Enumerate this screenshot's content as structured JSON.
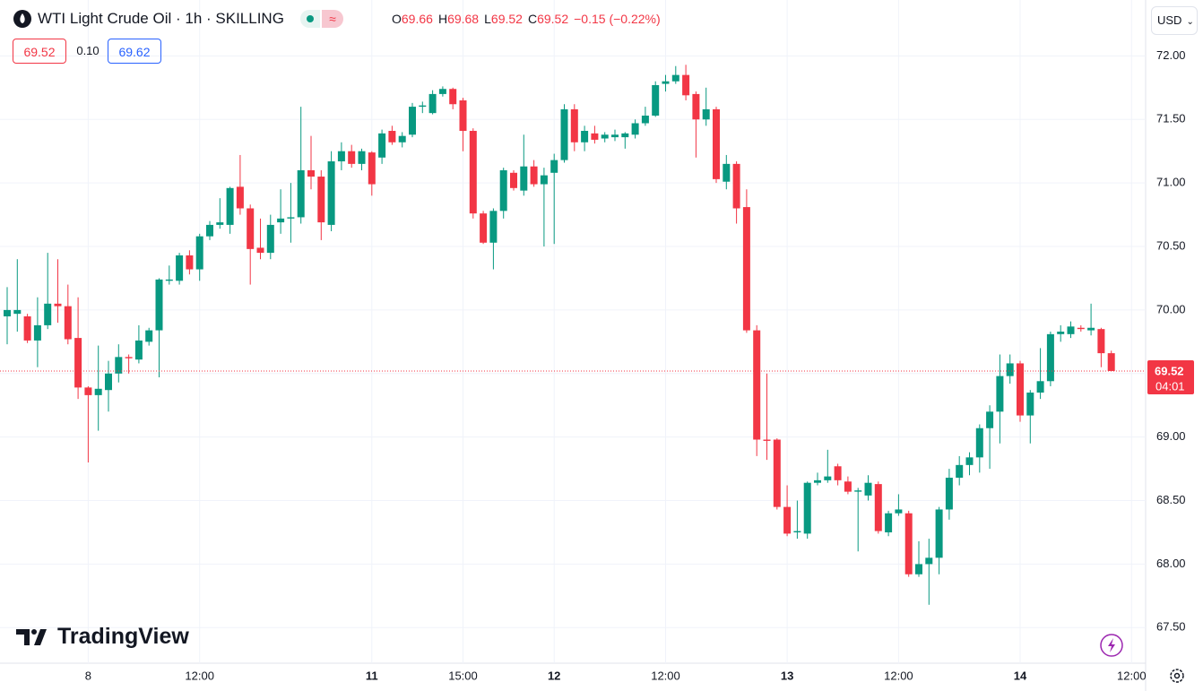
{
  "header": {
    "title": "WTI Light Crude Oil · 1h · SKILLING",
    "ohlc": [
      {
        "label": "O",
        "value": "69.66"
      },
      {
        "label": "H",
        "value": "69.68"
      },
      {
        "label": "L",
        "value": "69.52"
      },
      {
        "label": "C",
        "value": "69.52"
      }
    ],
    "change": "−0.15 (−0.22%)"
  },
  "trade": {
    "sell": "69.52",
    "spread": "0.10",
    "buy": "69.62"
  },
  "currency": "USD",
  "logo": "TradingView",
  "chart_data": {
    "type": "candlestick",
    "up_color": "#089981",
    "down_color": "#f23645",
    "grid": true,
    "ylim": [
      67.22,
      72.44
    ],
    "yticks": [
      {
        "value": 72,
        "label": "72.00"
      },
      {
        "value": 71.5,
        "label": "71.50"
      },
      {
        "value": 71,
        "label": "71.00"
      },
      {
        "value": 70.5,
        "label": "70.50"
      },
      {
        "value": 70,
        "label": "70.00"
      },
      {
        "value": 69.5,
        "label": "69.50"
      },
      {
        "value": 69,
        "label": "69.00"
      },
      {
        "value": 68.5,
        "label": "68.50"
      },
      {
        "value": 68,
        "label": "68.00"
      },
      {
        "value": 67.5,
        "label": "67.50"
      }
    ],
    "last_price": 69.52,
    "countdown": "04:01",
    "categories": [
      null,
      null,
      null,
      null,
      null,
      null,
      null,
      null,
      "8",
      null,
      null,
      null,
      null,
      null,
      null,
      null,
      null,
      null,
      null,
      "12:00",
      null,
      null,
      null,
      null,
      null,
      null,
      null,
      null,
      null,
      null,
      null,
      null,
      null,
      null,
      null,
      null,
      "11",
      null,
      null,
      null,
      null,
      null,
      null,
      null,
      null,
      "15:00",
      null,
      null,
      null,
      null,
      null,
      null,
      null,
      null,
      "12",
      null,
      null,
      null,
      null,
      null,
      null,
      null,
      null,
      null,
      null,
      "12:00",
      null,
      null,
      null,
      null,
      null,
      null,
      null,
      null,
      null,
      null,
      null,
      "13",
      null,
      null,
      null,
      null,
      null,
      null,
      null,
      null,
      null,
      null,
      "12:00",
      null,
      null,
      null,
      null,
      null,
      null,
      null,
      null,
      null,
      null,
      null,
      "14",
      null,
      null,
      null,
      null,
      null,
      null,
      null,
      null,
      null,
      null,
      "12:00"
    ],
    "open": [
      69.95,
      69.97,
      69.95,
      69.76,
      69.88,
      70.05,
      70.03,
      69.78,
      69.39,
      69.33,
      69.37,
      69.5,
      69.63,
      69.61,
      69.75,
      69.84,
      70.23,
      70.23,
      70.43,
      70.32,
      70.58,
      70.67,
      70.67,
      70.97,
      70.8,
      70.49,
      70.45,
      70.69,
      70.72,
      70.73,
      71.1,
      71.05,
      70.67,
      71.17,
      71.25,
      71.15,
      71.24,
      71.2,
      71.41,
      71.32,
      71.38,
      71.6,
      71.55,
      71.7,
      71.74,
      71.65,
      71.41,
      70.76,
      70.53,
      70.78,
      71.08,
      70.94,
      71.13,
      70.99,
      71.08,
      71.18,
      71.58,
      71.32,
      71.39,
      71.35,
      71.36,
      71.36,
      71.38,
      71.47,
      71.53,
      71.78,
      71.8,
      71.85,
      71.7,
      71.5,
      71.58,
      71.01,
      71.15,
      70.81,
      69.84,
      68.98,
      68.98,
      68.45,
      68.25,
      68.24,
      68.64,
      68.66,
      68.77,
      68.65,
      68.57,
      68.54,
      68.63,
      68.25,
      68.4,
      68.4,
      67.92,
      68.0,
      68.05,
      68.43,
      68.68,
      68.78,
      68.84,
      69.07,
      69.2,
      69.48,
      69.58,
      69.17,
      69.35,
      69.44,
      69.81,
      69.81,
      69.86,
      69.84,
      69.85,
      69.66,
      null,
      null
    ],
    "high": [
      70.18,
      70.4,
      69.97,
      70.1,
      70.45,
      70.4,
      70.2,
      70.1,
      69.4,
      69.72,
      69.6,
      69.73,
      69.65,
      69.88,
      69.86,
      70.25,
      70.35,
      70.45,
      70.47,
      70.6,
      70.7,
      70.88,
      70.97,
      71.22,
      70.83,
      70.72,
      70.75,
      70.95,
      71.0,
      71.6,
      71.37,
      71.1,
      71.25,
      71.32,
      71.3,
      71.27,
      71.25,
      71.42,
      71.45,
      71.4,
      71.63,
      71.64,
      71.73,
      71.76,
      71.75,
      71.67,
      71.43,
      70.78,
      70.8,
      71.12,
      71.1,
      71.38,
      71.18,
      71.12,
      71.23,
      71.62,
      71.62,
      71.45,
      71.45,
      71.4,
      71.42,
      71.4,
      71.5,
      71.6,
      71.8,
      71.85,
      71.92,
      71.93,
      71.72,
      71.75,
      71.6,
      71.22,
      71.17,
      70.95,
      69.88,
      69.5,
      68.99,
      68.62,
      68.5,
      68.65,
      68.72,
      68.9,
      68.79,
      68.69,
      68.6,
      68.7,
      68.65,
      68.42,
      68.55,
      68.42,
      68.18,
      68.2,
      68.45,
      68.75,
      68.85,
      68.88,
      69.1,
      69.25,
      69.65,
      69.65,
      69.6,
      69.37,
      69.7,
      69.83,
      69.88,
      69.91,
      69.88,
      70.05,
      69.86,
      69.68,
      null,
      null
    ],
    "low": [
      69.73,
      69.83,
      69.74,
      69.55,
      69.85,
      69.9,
      69.73,
      69.3,
      68.8,
      69.05,
      69.2,
      69.43,
      69.5,
      69.58,
      69.72,
      69.47,
      70.2,
      70.2,
      70.28,
      70.23,
      70.55,
      70.64,
      70.6,
      70.75,
      70.2,
      70.4,
      70.4,
      70.6,
      70.53,
      70.68,
      70.95,
      70.55,
      70.62,
      71.1,
      71.12,
      71.1,
      70.9,
      71.15,
      71.3,
      71.28,
      71.36,
      71.55,
      71.54,
      71.68,
      71.58,
      71.25,
      70.72,
      70.52,
      70.32,
      70.72,
      70.94,
      70.9,
      70.97,
      70.5,
      70.52,
      71.16,
      71.25,
      71.25,
      71.31,
      71.32,
      71.33,
      71.27,
      71.35,
      71.45,
      71.52,
      71.72,
      71.78,
      71.65,
      71.2,
      71.45,
      71.0,
      70.95,
      70.68,
      69.82,
      68.85,
      68.82,
      68.43,
      68.22,
      68.2,
      68.2,
      68.62,
      68.64,
      68.62,
      68.55,
      68.1,
      68.5,
      68.24,
      68.22,
      68.38,
      67.9,
      67.9,
      67.68,
      67.92,
      68.35,
      68.62,
      68.7,
      68.72,
      68.75,
      68.95,
      69.42,
      69.12,
      68.95,
      69.3,
      69.4,
      69.75,
      69.78,
      69.83,
      69.8,
      69.55,
      69.52,
      null,
      null
    ],
    "close": [
      70.0,
      70.0,
      69.76,
      69.88,
      70.05,
      70.03,
      69.77,
      69.39,
      69.33,
      69.38,
      69.5,
      69.63,
      69.62,
      69.76,
      69.84,
      70.24,
      70.24,
      70.43,
      70.32,
      70.58,
      70.67,
      70.69,
      70.96,
      70.8,
      70.48,
      70.45,
      70.67,
      70.72,
      70.73,
      71.1,
      71.05,
      70.69,
      71.17,
      71.25,
      71.15,
      71.25,
      70.99,
      71.39,
      71.32,
      71.37,
      71.6,
      71.61,
      71.7,
      71.74,
      71.62,
      71.41,
      70.76,
      70.53,
      70.78,
      71.1,
      70.96,
      71.13,
      70.99,
      71.06,
      71.18,
      71.58,
      71.32,
      71.41,
      71.34,
      71.38,
      71.38,
      71.39,
      71.47,
      71.53,
      71.77,
      71.8,
      71.85,
      71.69,
      71.5,
      71.58,
      71.03,
      71.15,
      70.8,
      69.84,
      68.98,
      68.97,
      68.45,
      68.24,
      68.26,
      68.64,
      68.66,
      68.69,
      68.66,
      68.57,
      68.58,
      68.64,
      68.26,
      68.4,
      68.43,
      67.92,
      68.0,
      68.05,
      68.43,
      68.68,
      68.78,
      68.84,
      69.07,
      69.2,
      69.48,
      69.58,
      69.17,
      69.35,
      69.44,
      69.81,
      69.83,
      69.87,
      69.85,
      69.86,
      69.66,
      69.52,
      null,
      null
    ]
  }
}
